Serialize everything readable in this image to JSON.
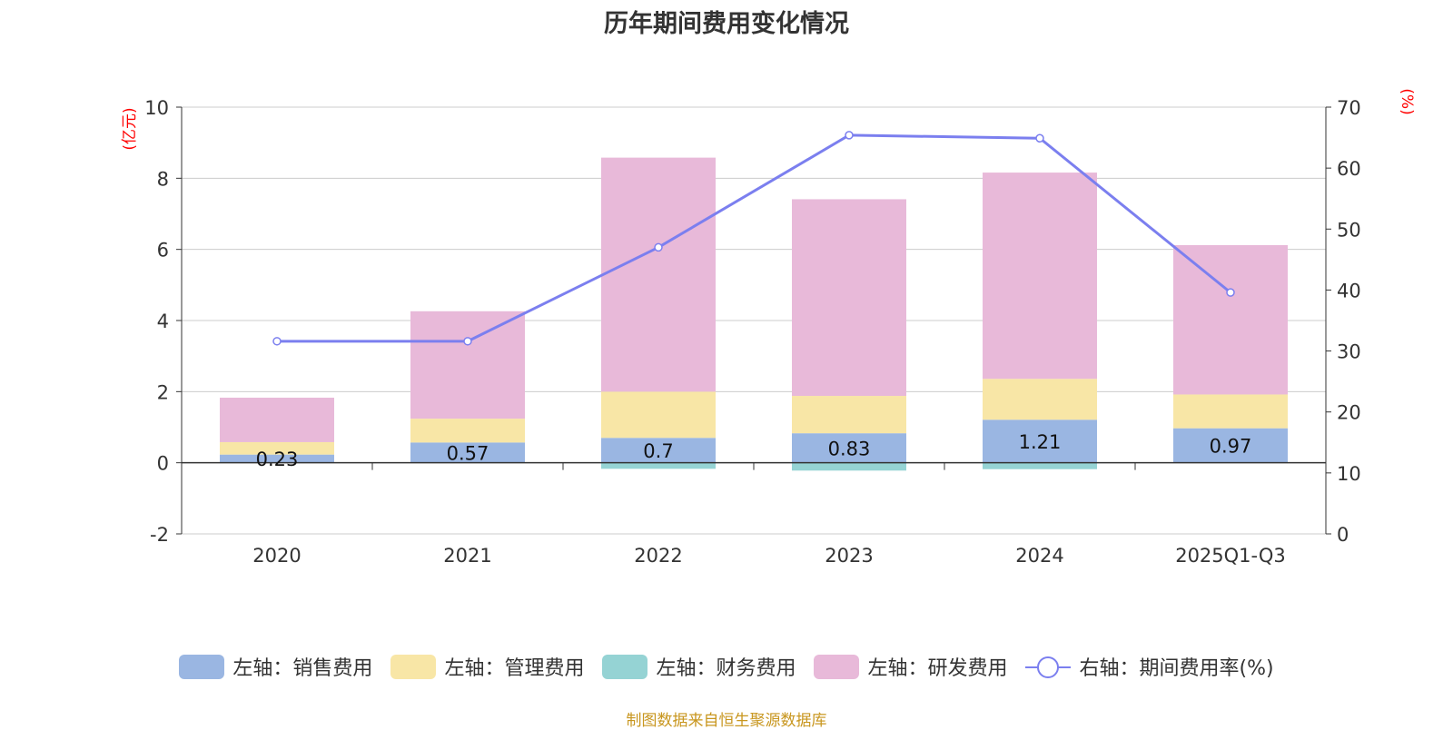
{
  "chart_data": {
    "type": "bar",
    "title": "历年期间费用变化情况",
    "categories": [
      "2020",
      "2021",
      "2022",
      "2023",
      "2024",
      "2025Q1-Q3"
    ],
    "series": [
      {
        "name": "左轴：销售费用",
        "axis": "left",
        "stack": "fee",
        "color": "#9ab6e2",
        "values": [
          0.23,
          0.57,
          0.7,
          0.83,
          1.21,
          0.97
        ],
        "labels": [
          "0.23",
          "0.57",
          "0.7",
          "0.83",
          "1.21",
          "0.97"
        ]
      },
      {
        "name": "左轴：管理费用",
        "axis": "left",
        "stack": "fee",
        "color": "#f8e6a6",
        "values": [
          0.35,
          0.67,
          1.3,
          1.05,
          1.15,
          0.95
        ]
      },
      {
        "name": "左轴：财务费用",
        "axis": "left",
        "stack": "fee",
        "color": "#95d3d4",
        "values": [
          0.0,
          0.0,
          -0.17,
          -0.22,
          -0.18,
          0.0
        ]
      },
      {
        "name": "左轴：研发费用",
        "axis": "left",
        "stack": "fee",
        "color": "#e8b9d9",
        "values": [
          1.25,
          3.02,
          6.58,
          5.53,
          5.8,
          4.2
        ]
      },
      {
        "name": "右轴：期间费用率(%)",
        "axis": "right",
        "type": "line",
        "color": "#7b7fef",
        "values": [
          31.6,
          31.6,
          47.0,
          65.4,
          64.9,
          39.6
        ]
      }
    ],
    "left_axis": {
      "label": "(亿元)",
      "min": -2,
      "max": 10,
      "ticks": [
        "10",
        "8",
        "6",
        "4",
        "2",
        "0",
        "-2"
      ],
      "tick_values": [
        10,
        8,
        6,
        4,
        2,
        0,
        -2
      ]
    },
    "right_axis": {
      "label": "(%)",
      "min": 0,
      "max": 70,
      "ticks": [
        "70",
        "60",
        "50",
        "40",
        "30",
        "20",
        "10",
        "0"
      ],
      "tick_values": [
        70,
        60,
        50,
        40,
        30,
        20,
        10,
        0
      ]
    },
    "grid": true,
    "legend_position": "bottom"
  },
  "source_text": "制图数据来自恒生聚源数据库"
}
